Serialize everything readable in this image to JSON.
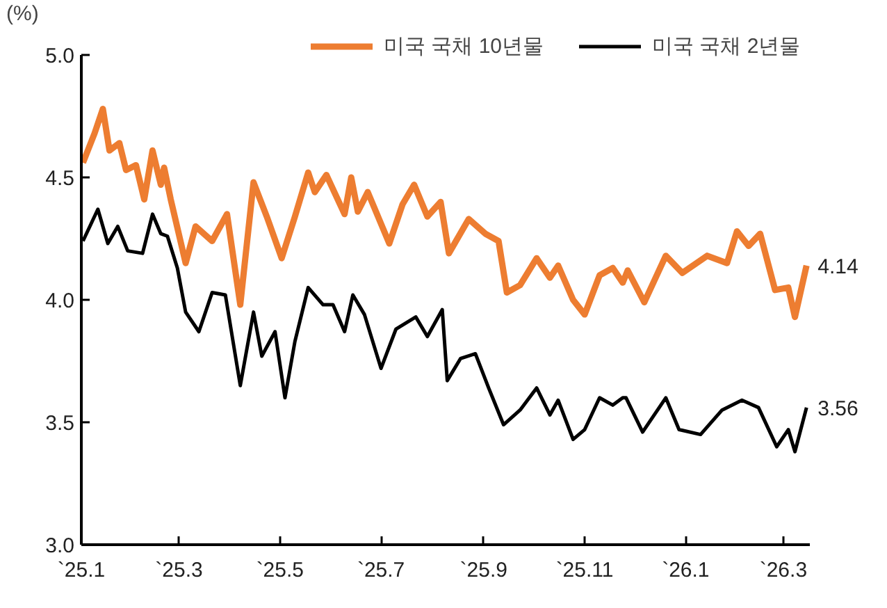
{
  "chart_data": {
    "type": "line",
    "ylabel": "(%)",
    "legend": "top",
    "grid": false,
    "marker": "none",
    "line_style": "solid",
    "xlim": [
      "2025-01-01",
      "2026-03-17"
    ],
    "xticks": [
      {
        "value": "2025-01-01",
        "label": "`25.1"
      },
      {
        "value": "2025-03-01",
        "label": "`25.3"
      },
      {
        "value": "2025-05-01",
        "label": "`25.5"
      },
      {
        "value": "2025-07-01",
        "label": "`25.7"
      },
      {
        "value": "2025-09-01",
        "label": "`25.9"
      },
      {
        "value": "2025-11-01",
        "label": "`25.11"
      },
      {
        "value": "2026-01-01",
        "label": "`26.1"
      },
      {
        "value": "2026-03-01",
        "label": "`26.3"
      }
    ],
    "ylim": [
      3.0,
      5.0
    ],
    "yticks": [
      {
        "value": 3.0,
        "label": "3.0"
      },
      {
        "value": 3.5,
        "label": "3.5"
      },
      {
        "value": 4.0,
        "label": "4.0"
      },
      {
        "value": 4.5,
        "label": "4.5"
      },
      {
        "value": 5.0,
        "label": "5.0"
      }
    ],
    "series": [
      {
        "name": "미국 국채 10년물",
        "color": "#ed7d31",
        "x": [
          "2025-01-02",
          "2025-01-09",
          "2025-01-14",
          "2025-01-18",
          "2025-01-24",
          "2025-01-28",
          "2025-02-03",
          "2025-02-08",
          "2025-02-13",
          "2025-02-18",
          "2025-02-20",
          "2025-02-24",
          "2025-03-05",
          "2025-03-11",
          "2025-03-21",
          "2025-03-30",
          "2025-04-07",
          "2025-04-15",
          "2025-04-23",
          "2025-05-02",
          "2025-05-10",
          "2025-05-18",
          "2025-05-22",
          "2025-05-29",
          "2025-06-09",
          "2025-06-13",
          "2025-06-17",
          "2025-06-23",
          "2025-07-06",
          "2025-07-14",
          "2025-07-21",
          "2025-07-29",
          "2025-08-06",
          "2025-08-11",
          "2025-08-23",
          "2025-09-02",
          "2025-09-10",
          "2025-09-15",
          "2025-09-23",
          "2025-10-03",
          "2025-10-11",
          "2025-10-16",
          "2025-10-25",
          "2025-11-01",
          "2025-11-10",
          "2025-11-18",
          "2025-11-24",
          "2025-11-27",
          "2025-12-07",
          "2025-12-20",
          "2025-12-30",
          "2026-01-14",
          "2026-01-26",
          "2026-02-01",
          "2026-02-08",
          "2026-02-15",
          "2026-02-24",
          "2026-03-04",
          "2026-03-08",
          "2026-03-15"
        ],
        "values": [
          4.56,
          4.68,
          4.78,
          4.61,
          4.64,
          4.53,
          4.55,
          4.41,
          4.61,
          4.47,
          4.54,
          4.41,
          4.15,
          4.3,
          4.24,
          4.35,
          3.98,
          4.48,
          4.34,
          4.17,
          4.34,
          4.52,
          4.44,
          4.51,
          4.35,
          4.5,
          4.36,
          4.44,
          4.23,
          4.39,
          4.47,
          4.34,
          4.4,
          4.19,
          4.33,
          4.27,
          4.24,
          4.03,
          4.06,
          4.17,
          4.09,
          4.14,
          4.0,
          3.94,
          4.1,
          4.13,
          4.07,
          4.12,
          3.99,
          4.18,
          4.11,
          4.18,
          4.15,
          4.28,
          4.22,
          4.27,
          4.04,
          4.05,
          3.93,
          4.14
        ]
      },
      {
        "name": "미국 국채 2년물",
        "color": "#000000",
        "x": [
          "2025-01-02",
          "2025-01-11",
          "2025-01-17",
          "2025-01-23",
          "2025-01-29",
          "2025-02-07",
          "2025-02-13",
          "2025-02-18",
          "2025-02-22",
          "2025-02-28",
          "2025-03-05",
          "2025-03-13",
          "2025-03-21",
          "2025-03-29",
          "2025-04-07",
          "2025-04-15",
          "2025-04-20",
          "2025-04-28",
          "2025-05-04",
          "2025-05-10",
          "2025-05-18",
          "2025-05-27",
          "2025-06-02",
          "2025-06-09",
          "2025-06-14",
          "2025-06-21",
          "2025-07-01",
          "2025-07-10",
          "2025-07-22",
          "2025-07-29",
          "2025-08-07",
          "2025-08-10",
          "2025-08-18",
          "2025-08-27",
          "2025-09-04",
          "2025-09-13",
          "2025-09-23",
          "2025-10-03",
          "2025-10-11",
          "2025-10-16",
          "2025-10-25",
          "2025-11-01",
          "2025-11-10",
          "2025-11-18",
          "2025-11-24",
          "2025-11-26",
          "2025-12-06",
          "2025-12-20",
          "2025-12-28",
          "2026-01-10",
          "2026-01-23",
          "2026-02-04",
          "2026-02-14",
          "2026-02-25",
          "2026-03-04",
          "2026-03-08",
          "2026-03-15"
        ],
        "values": [
          4.24,
          4.37,
          4.23,
          4.3,
          4.2,
          4.19,
          4.35,
          4.27,
          4.26,
          4.13,
          3.95,
          3.87,
          4.03,
          4.02,
          3.65,
          3.95,
          3.77,
          3.87,
          3.6,
          3.83,
          4.05,
          3.98,
          3.98,
          3.87,
          4.02,
          3.94,
          3.72,
          3.88,
          3.93,
          3.85,
          3.96,
          3.67,
          3.76,
          3.78,
          3.64,
          3.49,
          3.55,
          3.64,
          3.53,
          3.59,
          3.43,
          3.47,
          3.6,
          3.57,
          3.6,
          3.6,
          3.46,
          3.6,
          3.47,
          3.45,
          3.55,
          3.59,
          3.56,
          3.4,
          3.47,
          3.38,
          3.56
        ]
      }
    ],
    "annotations": [
      {
        "text": "4.14",
        "x": "2026-03-15",
        "y": 4.14
      },
      {
        "text": "3.56",
        "x": "2026-03-15",
        "y": 3.56
      }
    ]
  }
}
